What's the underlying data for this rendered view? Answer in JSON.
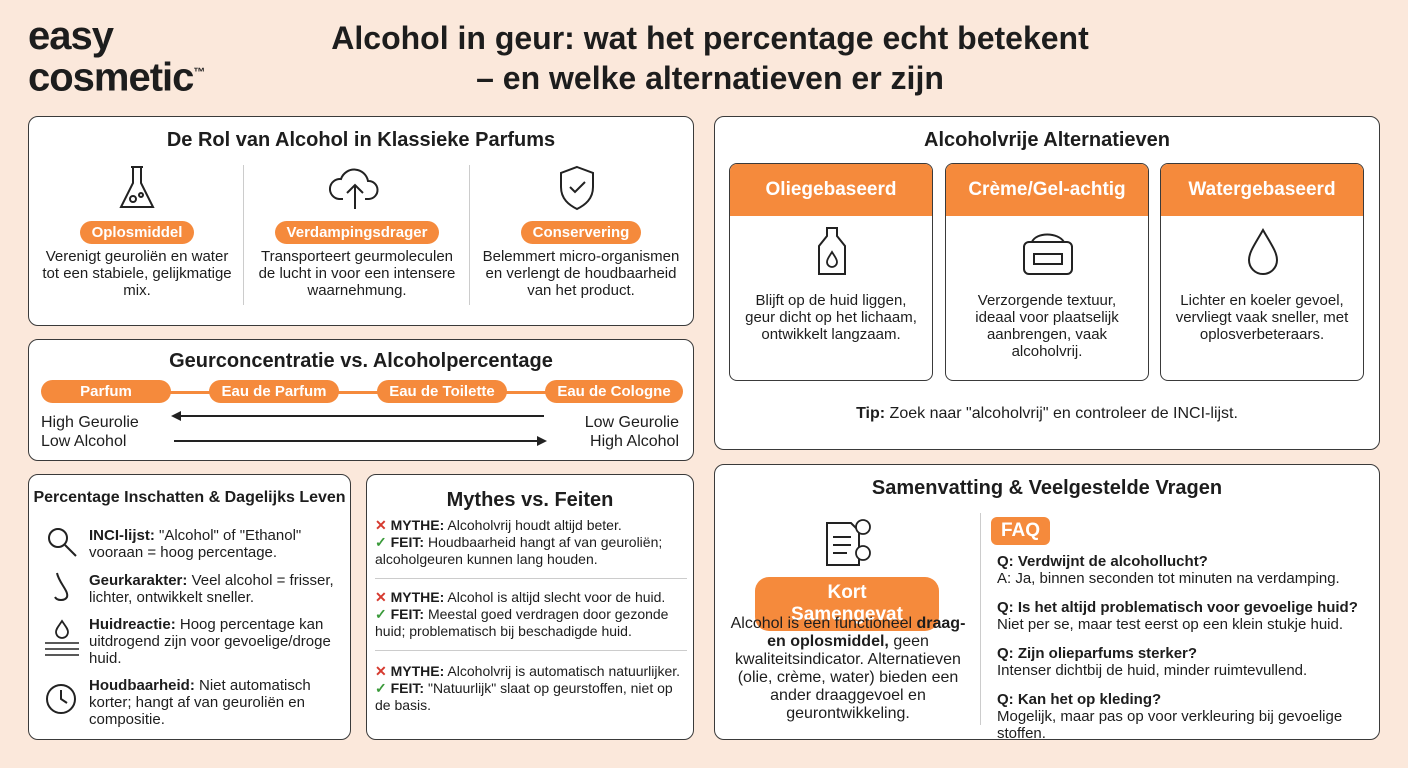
{
  "brand": {
    "line1": "easy",
    "line2": "cosmetic",
    "tm": "™"
  },
  "title": {
    "line1": "Alcohol in geur: wat het percentage echt betekent",
    "line2": "– en welke alternatieven er zijn"
  },
  "role": {
    "title": "De Rol van Alcohol in Klassieke Parfums",
    "items": [
      {
        "label": "Oplosmiddel",
        "text": "Verenigt geuroliën en water tot een stabiele, gelijkmatige mix."
      },
      {
        "label": "Verdampingsdrager",
        "text": "Transporteert geurmoleculen de lucht in voor een intensere waarnehmung."
      },
      {
        "label": "Conservering",
        "text": "Belemmert micro-organismen en verlengt de houdbaarheid van het product."
      }
    ]
  },
  "concentration": {
    "title": "Geurconcentratie vs. Alcoholpercentage",
    "levels": [
      "Parfum",
      "Eau de Parfum",
      "Eau de Toilette",
      "Eau de Cologne"
    ],
    "left": [
      "High Geurolie",
      "Low Alcohol"
    ],
    "right": [
      "Low Geurolie",
      "High Alcohol"
    ]
  },
  "estimate": {
    "title": "Percentage Inschatten & Dagelijks Leven",
    "items": [
      {
        "label": "INCI-lijst:",
        "text": "\"Alcohol\" of \"Ethanol\" vooraan = hoog percentage."
      },
      {
        "label": "Geurkarakter:",
        "text": "Veel alcohol = frisser, lichter, ontwikkelt sneller."
      },
      {
        "label": "Huidreactie:",
        "text": "Hoog percentage kan uitdrogend zijn voor gevoelige/droge huid."
      },
      {
        "label": "Houdbaarheid:",
        "text": "Niet automatisch korter; hangt af van geuroliën en compositie."
      }
    ]
  },
  "myths": {
    "title": "Mythes vs. Feiten",
    "items": [
      {
        "myth_label": "MYTHE:",
        "myth": "Alcoholvrij houdt altijd beter.",
        "fact_label": "FEIT:",
        "fact": "Houdbaarheid hangt af van geuroliën; alcoholgeuren kunnen lang houden."
      },
      {
        "myth_label": "MYTHE:",
        "myth": "Alcohol is altijd slecht voor de huid.",
        "fact_label": "FEIT:",
        "fact": "Meestal goed verdragen door gezonde huid; problematisch bij beschadigde huid."
      },
      {
        "myth_label": "MYTHE:",
        "myth": "Alcoholvrij is automatisch natuurlijker.",
        "fact_label": "FEIT:",
        "fact": "\"Natuurlijk\" slaat op geurstoffen, niet op de basis."
      }
    ]
  },
  "alternatives": {
    "title": "Alcoholvrije Alternatieven",
    "items": [
      {
        "label": "Oliegebaseerd",
        "text": "Blijft op de huid liggen, geur dicht op het lichaam, ontwikkelt langzaam."
      },
      {
        "label": "Crème/Gel-achtig",
        "text": "Verzorgende textuur, ideaal voor plaatselijk aanbrengen, vaak alcoholvrij."
      },
      {
        "label": "Watergebaseerd",
        "text": "Lichter en koeler gevoel, vervliegt vaak sneller, met oplosverbeteraars."
      }
    ],
    "tip_label": "Tip:",
    "tip": "Zoek naar \"alcoholvrij\" en controleer de INCI-lijst."
  },
  "summary": {
    "title": "Samenvatting & Veelgestelde Vragen",
    "badge": "Kort Samengevat",
    "text_start": "Alcohol is een functioneel",
    "text_bold": "draag- en oplosmiddel,",
    "text_end": "geen kwaliteitsindicator. Alternatieven (olie, crème, water) bieden een ander draaggevoel en geurontwikkeling.",
    "faq_label": "FAQ",
    "faq": [
      {
        "q": "Q: Verdwijnt de alcohollucht?",
        "a": "A: Ja, binnen seconden tot minuten na verdamping."
      },
      {
        "q": "Q: Is het altijd problematisch voor gevoelige huid?",
        "a": "Niet per se, maar test eerst op een klein stukje huid."
      },
      {
        "q": "Q: Zijn olieparfums sterker?",
        "a": "Intenser dichtbij de huid, minder ruimtevullend."
      },
      {
        "q": "Q: Kan het op kleding?",
        "a": "Mogelijk, maar pas op voor verkleuring bij gevoelige stoffen."
      }
    ]
  }
}
